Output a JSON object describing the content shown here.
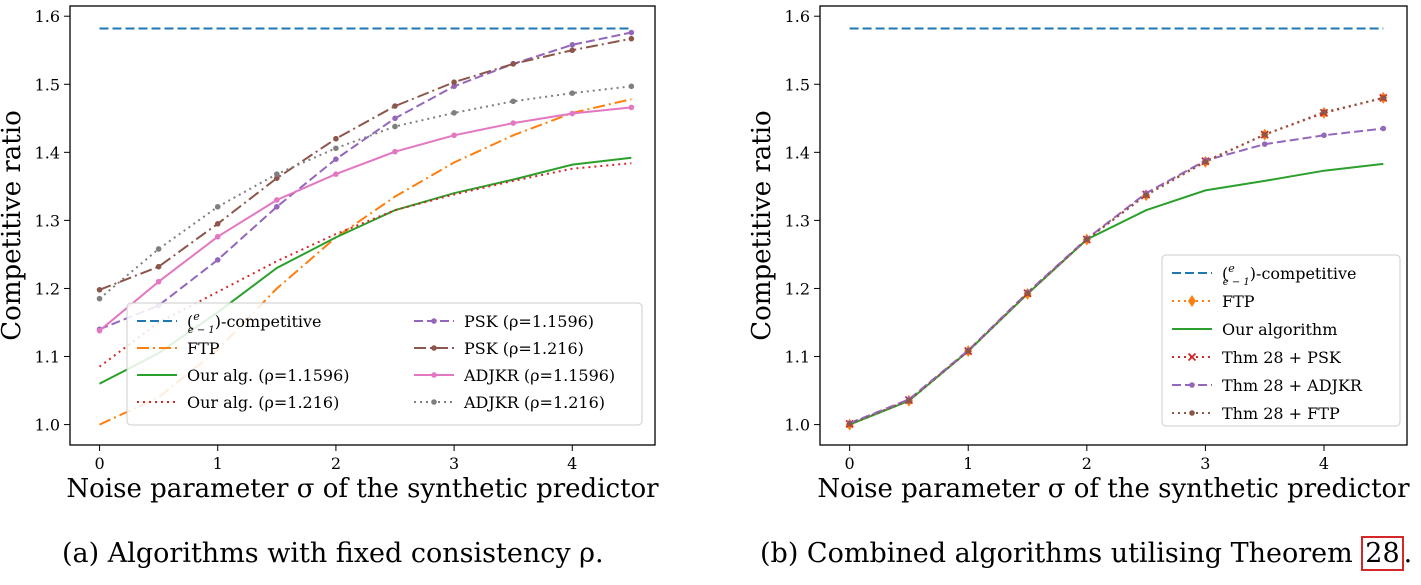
{
  "chart_data": [
    {
      "type": "line",
      "xlabel": "Noise parameter σ of the synthetic predictor",
      "ylabel": "Competitive ratio",
      "xlim": [
        -0.25,
        4.7
      ],
      "ylim": [
        0.97,
        1.615
      ],
      "xticks": [
        0,
        1,
        2,
        3,
        4
      ],
      "yticks": [
        1.0,
        1.1,
        1.2,
        1.3,
        1.4,
        1.5,
        1.6
      ],
      "ytick_labels": [
        "1.0",
        "1.1",
        "1.2",
        "1.3",
        "1.4",
        "1.5",
        "1.6"
      ],
      "legend_location": "lower-right",
      "legend_columns": 2,
      "series": [
        {
          "name_pre": "(",
          "frac_num": "e",
          "frac_den": "e − 1",
          "name_post": ")-competitive",
          "color": "#1f77b4",
          "dash": "9,4",
          "marker": "none",
          "x": [
            0,
            4.5
          ],
          "y": [
            1.582,
            1.582
          ]
        },
        {
          "name_pre": "FTP",
          "color": "#ff7f0e",
          "dash": "12,4,2,4",
          "marker": "none",
          "x": [
            0,
            0.5,
            1,
            1.5,
            2,
            2.5,
            3,
            3.5,
            4,
            4.5
          ],
          "y": [
            1.0,
            1.04,
            1.11,
            1.2,
            1.275,
            1.335,
            1.385,
            1.425,
            1.458,
            1.478
          ]
        },
        {
          "name_pre": "Our alg. (ρ=1.1596)",
          "color": "#2ca02c",
          "dash": "none",
          "marker": "none",
          "x": [
            0,
            0.5,
            1,
            1.5,
            2,
            2.5,
            3,
            3.5,
            4,
            4.5
          ],
          "y": [
            1.06,
            1.105,
            1.165,
            1.23,
            1.275,
            1.315,
            1.34,
            1.36,
            1.382,
            1.392
          ]
        },
        {
          "name_pre": "Our alg. (ρ=1.216)",
          "color": "#d62728",
          "dash": "2,4",
          "marker": "none",
          "x": [
            0,
            0.5,
            1,
            1.5,
            2,
            2.5,
            3,
            3.5,
            4,
            4.5
          ],
          "y": [
            1.085,
            1.15,
            1.195,
            1.24,
            1.28,
            1.315,
            1.338,
            1.358,
            1.376,
            1.384
          ]
        },
        {
          "name_pre": "PSK (ρ=1.1596)",
          "color": "#9467bd",
          "dash": "9,4",
          "marker": "dot",
          "x": [
            0,
            0.5,
            1,
            1.5,
            2,
            2.5,
            3,
            3.5,
            4,
            4.5
          ],
          "y": [
            1.14,
            1.175,
            1.242,
            1.32,
            1.39,
            1.45,
            1.497,
            1.53,
            1.558,
            1.576
          ]
        },
        {
          "name_pre": "PSK (ρ=1.216)",
          "color": "#8c564b",
          "dash": "12,4,2,4",
          "marker": "dot",
          "x": [
            0,
            0.5,
            1,
            1.5,
            2,
            2.5,
            3,
            3.5,
            4,
            4.5
          ],
          "y": [
            1.198,
            1.232,
            1.295,
            1.362,
            1.42,
            1.468,
            1.503,
            1.53,
            1.55,
            1.567
          ]
        },
        {
          "name_pre": "ADJKR (ρ=1.1596)",
          "color": "#e377c2",
          "dash": "none",
          "marker": "dot",
          "x": [
            0,
            0.5,
            1,
            1.5,
            2,
            2.5,
            3,
            3.5,
            4,
            4.5
          ],
          "y": [
            1.138,
            1.21,
            1.276,
            1.33,
            1.368,
            1.401,
            1.425,
            1.443,
            1.457,
            1.466
          ]
        },
        {
          "name_pre": "ADJKR (ρ=1.216)",
          "color": "#7f7f7f",
          "dash": "2,4",
          "marker": "dot",
          "x": [
            0,
            0.5,
            1,
            1.5,
            2,
            2.5,
            3,
            3.5,
            4,
            4.5
          ],
          "y": [
            1.185,
            1.258,
            1.32,
            1.368,
            1.406,
            1.438,
            1.458,
            1.475,
            1.487,
            1.497
          ]
        }
      ]
    },
    {
      "type": "line",
      "xlabel": "Noise parameter σ of the synthetic predictor",
      "ylabel": "Competitive ratio",
      "xlim": [
        -0.25,
        4.7
      ],
      "ylim": [
        0.97,
        1.615
      ],
      "xticks": [
        0,
        1,
        2,
        3,
        4
      ],
      "yticks": [
        1.0,
        1.1,
        1.2,
        1.3,
        1.4,
        1.5,
        1.6
      ],
      "ytick_labels": [
        "1.0",
        "1.1",
        "1.2",
        "1.3",
        "1.4",
        "1.5",
        "1.6"
      ],
      "legend_location": "lower-right",
      "legend_columns": 1,
      "series": [
        {
          "name_pre": "(",
          "frac_num": "e",
          "frac_den": "e − 1",
          "name_post": ")-competitive",
          "color": "#1f77b4",
          "dash": "9,4",
          "marker": "none",
          "x": [
            0,
            4.5
          ],
          "y": [
            1.582,
            1.582
          ]
        },
        {
          "name_pre": "FTP",
          "color": "#ff7f0e",
          "dash": "2,4",
          "marker": "diamond",
          "x": [
            0,
            0.5,
            1,
            1.5,
            2,
            2.5,
            3,
            3.5,
            4,
            4.5
          ],
          "y": [
            1.0,
            1.035,
            1.108,
            1.192,
            1.272,
            1.337,
            1.386,
            1.426,
            1.458,
            1.48
          ]
        },
        {
          "name_pre": "Our algorithm",
          "color": "#2ca02c",
          "dash": "none",
          "marker": "none",
          "x": [
            0,
            0.5,
            1,
            1.5,
            2,
            2.5,
            3,
            3.5,
            4,
            4.5
          ],
          "y": [
            1.0,
            1.035,
            1.108,
            1.192,
            1.272,
            1.315,
            1.344,
            1.358,
            1.373,
            1.383
          ]
        },
        {
          "name_pre": "Thm 28 + PSK",
          "color": "#d62728",
          "dash": "2,4",
          "marker": "cross",
          "x": [
            0,
            0.5,
            1,
            1.5,
            2,
            2.5,
            3,
            3.5,
            4,
            4.5
          ],
          "y": [
            1.001,
            1.036,
            1.108,
            1.193,
            1.272,
            1.338,
            1.387,
            1.426,
            1.458,
            1.48
          ]
        },
        {
          "name_pre": "Thm 28 + ADJKR",
          "color": "#9467bd",
          "dash": "9,4",
          "marker": "dot",
          "x": [
            0,
            0.5,
            1,
            1.5,
            2,
            2.5,
            3,
            3.5,
            4,
            4.5
          ],
          "y": [
            1.002,
            1.037,
            1.109,
            1.194,
            1.273,
            1.34,
            1.388,
            1.412,
            1.425,
            1.435
          ]
        },
        {
          "name_pre": "Thm 28 + FTP",
          "color": "#8c564b",
          "dash": "2,4",
          "marker": "dot",
          "x": [
            0,
            0.5,
            1,
            1.5,
            2,
            2.5,
            3,
            3.5,
            4,
            4.5
          ],
          "y": [
            1.001,
            1.035,
            1.108,
            1.193,
            1.272,
            1.337,
            1.386,
            1.426,
            1.459,
            1.48
          ]
        }
      ]
    }
  ],
  "captions": {
    "a": "(a) Algorithms with fixed consistency ρ.",
    "b_text": "(b) Combined algorithms utilising Theorem ",
    "b_ref": "28",
    "b_end": "."
  }
}
